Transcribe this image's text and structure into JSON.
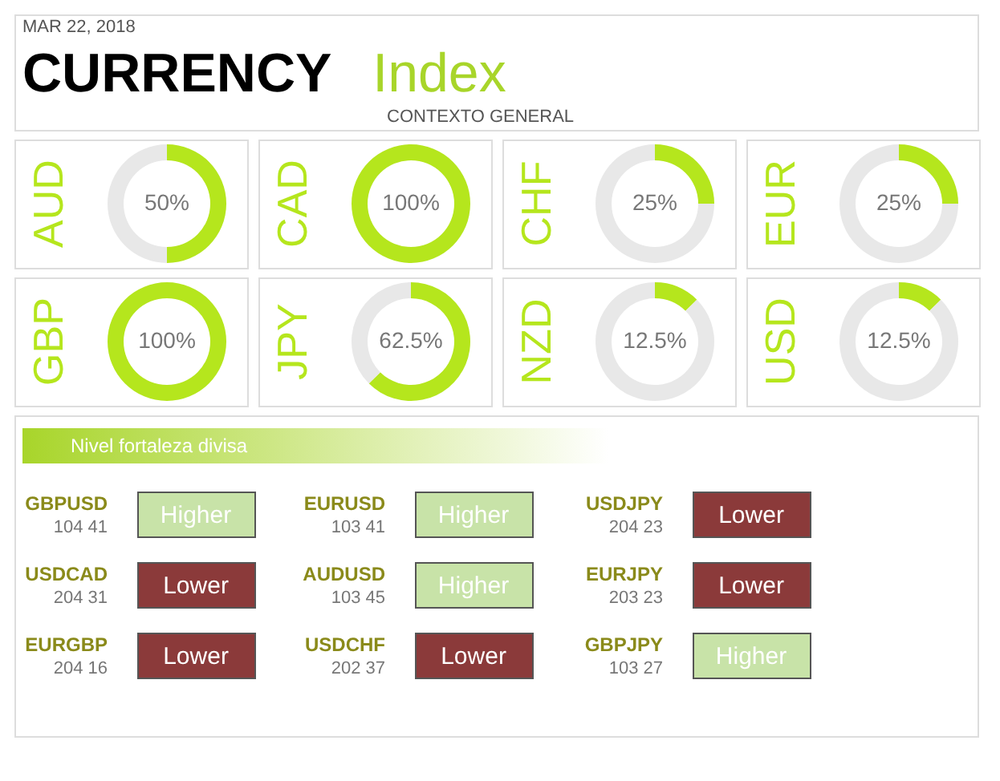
{
  "chart_data": [
    {
      "type": "other",
      "title": "CURRENCY Index",
      "subtitle": "CONTEXTO GENERAL",
      "annotations": [
        "MAR 22, 2018"
      ]
    },
    {
      "type": "donut",
      "title": "AUD",
      "categories": [
        null,
        null
      ],
      "values": [
        50,
        50
      ],
      "colors": [
        "#b5e61d",
        "#e8e8e8"
      ],
      "value_labels": [
        "50%",
        null
      ]
    },
    {
      "type": "donut",
      "title": "CAD",
      "categories": [
        null,
        null
      ],
      "values": [
        100,
        0
      ],
      "colors": [
        "#b5e61d",
        "#e8e8e8"
      ],
      "value_labels": [
        "100%",
        null
      ]
    },
    {
      "type": "donut",
      "title": "CHF",
      "categories": [
        null,
        null
      ],
      "values": [
        25,
        75
      ],
      "colors": [
        "#b5e61d",
        "#e8e8e8"
      ],
      "value_labels": [
        "25%",
        null
      ]
    },
    {
      "type": "donut",
      "title": "EUR",
      "categories": [
        null,
        null
      ],
      "values": [
        25,
        75
      ],
      "colors": [
        "#b5e61d",
        "#e8e8e8"
      ],
      "value_labels": [
        "25%",
        null
      ]
    },
    {
      "type": "donut",
      "title": "GBP",
      "categories": [
        null,
        null
      ],
      "values": [
        100,
        0
      ],
      "colors": [
        "#b5e61d",
        "#e8e8e8"
      ],
      "value_labels": [
        "100%",
        null
      ]
    },
    {
      "type": "donut",
      "title": "JPY",
      "categories": [
        null,
        null
      ],
      "values": [
        62.5,
        37.5
      ],
      "colors": [
        "#b5e61d",
        "#e8e8e8"
      ],
      "value_labels": [
        "62.5%",
        null
      ]
    },
    {
      "type": "donut",
      "title": "NZD",
      "categories": [
        null,
        null
      ],
      "values": [
        12.5,
        87.5
      ],
      "colors": [
        "#b5e61d",
        "#e8e8e8"
      ],
      "value_labels": [
        "12.5%",
        null
      ]
    },
    {
      "type": "donut",
      "title": "USD",
      "categories": [
        null,
        null
      ],
      "values": [
        12.5,
        87.5
      ],
      "colors": [
        "#b5e61d",
        "#e8e8e8"
      ],
      "value_labels": [
        "12.5%",
        null
      ]
    },
    {
      "type": "other",
      "title": "Nivel fortaleza divisa",
      "annotations": [
        "GBPUSD",
        "104 41",
        "Higher",
        "EURUSD",
        "103 41",
        "Higher",
        "USDJPY",
        "204 23",
        "Lower",
        "USDCAD",
        "204 31",
        "Lower",
        "AUDUSD",
        "103 45",
        "Higher",
        "EURJPY",
        "203 23",
        "Lower",
        "EURGBP",
        "204 16",
        "Lower",
        "USDCHF",
        "202 37",
        "Lower",
        "GBPJPY",
        "103 27",
        "Higher"
      ],
      "colors": [
        "#c8e3a8",
        "#c8e3a8",
        "#8b3a3a",
        "#8b3a3a",
        "#c8e3a8",
        "#8b3a3a",
        "#8b3a3a",
        "#8b3a3a",
        "#c8e3a8"
      ]
    }
  ]
}
